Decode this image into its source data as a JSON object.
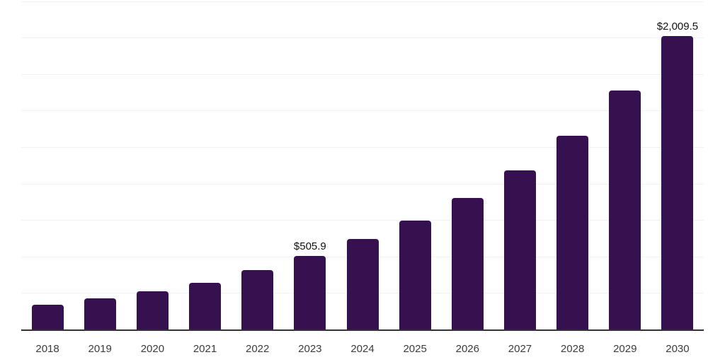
{
  "chart_data": {
    "type": "bar",
    "categories": [
      "2018",
      "2019",
      "2020",
      "2021",
      "2022",
      "2023",
      "2024",
      "2025",
      "2026",
      "2027",
      "2028",
      "2029",
      "2030"
    ],
    "values": [
      172,
      212,
      260,
      320,
      405,
      505.9,
      620,
      745,
      900,
      1090,
      1330,
      1640,
      2009.5
    ],
    "value_labels": {
      "2023": "$505.9",
      "2030": "$2,009.5"
    },
    "ylim": [
      0,
      2250
    ],
    "gridline_step": 250,
    "grid": "horizontal",
    "legend": "none",
    "y_axis_tick_labels": "hidden",
    "colors": {
      "bar": "#36114F",
      "gridline": "#f2f2f2",
      "axis_line": "#333333",
      "tick_label": "#3c3c3c",
      "value_label": "#111111",
      "background": "#ffffff"
    }
  }
}
